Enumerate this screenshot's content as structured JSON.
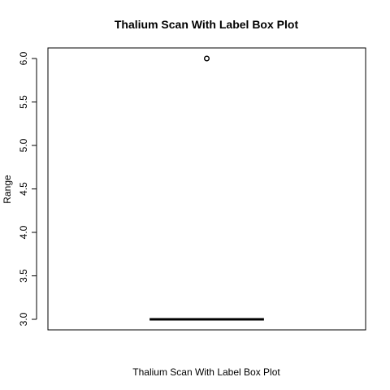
{
  "chart_data": {
    "type": "box",
    "title": "Thalium Scan With Label Box Plot",
    "xlabel": "Thalium Scan With Label Box Plot",
    "ylabel": "Range",
    "ylim": [
      2.9,
      6.1
    ],
    "yticks": [
      3.0,
      3.5,
      4.0,
      4.5,
      5.0,
      5.5,
      6.0
    ],
    "ytick_labels": [
      "3.0",
      "3.5",
      "4.0",
      "4.5",
      "5.0",
      "5.5",
      "6.0"
    ],
    "boxes": [
      {
        "min": 3.0,
        "q1": 3.0,
        "median": 3.0,
        "q3": 3.0,
        "max": 3.0,
        "outliers": [
          6.0
        ]
      }
    ],
    "grid": false
  }
}
